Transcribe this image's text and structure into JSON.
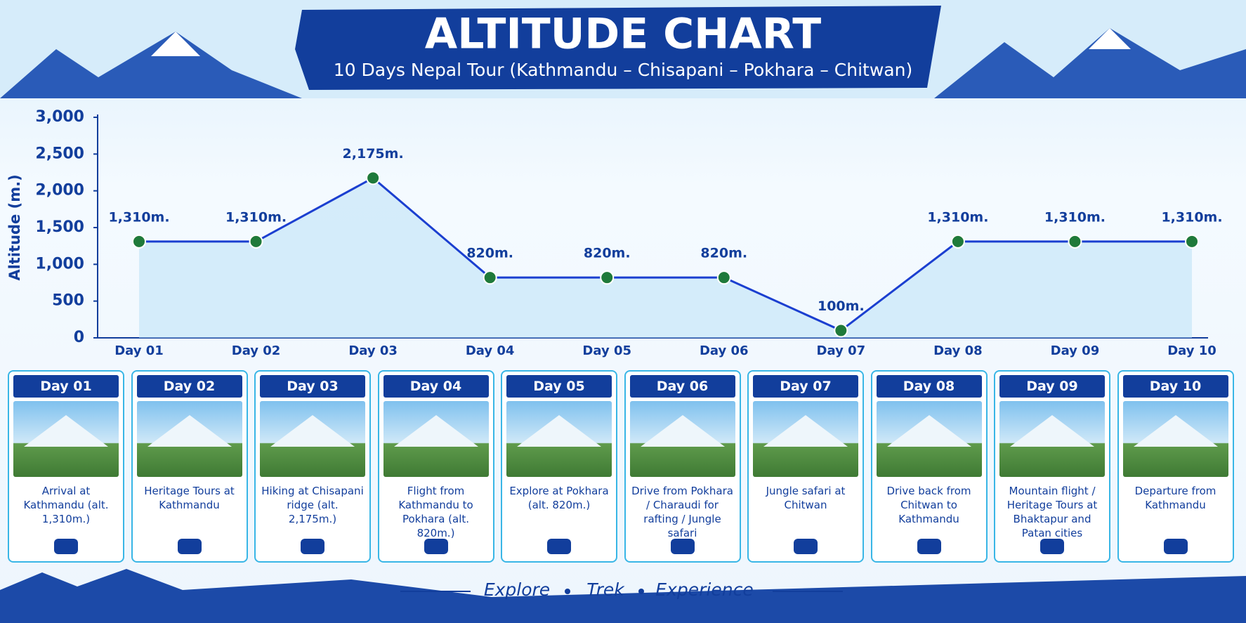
{
  "chart_data": {
    "type": "line",
    "title": "ALTITUDE CHART",
    "subtitle": "10 Days Nepal Tour (Kathmandu – Chisapani – Pokhara – Chitwan)",
    "y_label": "Altitude (m.)",
    "categories": [
      "Day 01",
      "Day 02",
      "Day 03",
      "Day 04",
      "Day 05",
      "Day 06",
      "Day 07",
      "Day 08",
      "Day 09",
      "Day 10"
    ],
    "values": [
      1310,
      1310,
      2175,
      820,
      820,
      820,
      100,
      1310,
      1310,
      1310
    ],
    "value_labels": [
      "1,310m.",
      "1,310m.",
      "2,175m.",
      "820m.",
      "820m.",
      "820m.",
      "100m.",
      "1,310m.",
      "1,310m.",
      "1,310m."
    ],
    "ylim": [
      0,
      3000
    ],
    "yticks": [
      0,
      500,
      {
        "value": 1000,
        "label": "1,000"
      },
      {
        "value": 1500,
        "label": "1,500"
      },
      {
        "value": 2000,
        "label": "2,000"
      },
      {
        "value": 2500,
        "label": "2,500"
      },
      {
        "value": 3000,
        "label": "3,000"
      }
    ],
    "color": "#1b3fd0",
    "marker_color": "#1f7a3a",
    "grid": false
  },
  "cards": [
    {
      "day": "Day 01",
      "text": "Arrival at Kathmandu (alt. 1,310m.)"
    },
    {
      "day": "Day 02",
      "text": "Heritage Tours at Kathmandu"
    },
    {
      "day": "Day 03",
      "text": "Hiking at Chisapani ridge (alt. 2,175m.)"
    },
    {
      "day": "Day 04",
      "text": "Flight from Kathmandu to Pokhara (alt. 820m.)"
    },
    {
      "day": "Day 05",
      "text": "Explore at Pokhara (alt. 820m.)"
    },
    {
      "day": "Day 06",
      "text": "Drive from Pokhara / Charaudi for rafting / Jungle safari"
    },
    {
      "day": "Day 07",
      "text": "Jungle safari at Chitwan"
    },
    {
      "day": "Day 08",
      "text": "Drive back from Chitwan to Kathmandu"
    },
    {
      "day": "Day 09",
      "text": "Mountain flight / Heritage Tours at Bhaktapur and Patan cities"
    },
    {
      "day": "Day 10",
      "text": "Departure from Kathmandu"
    }
  ],
  "footer": [
    "Explore",
    "Trek",
    "Experience"
  ]
}
